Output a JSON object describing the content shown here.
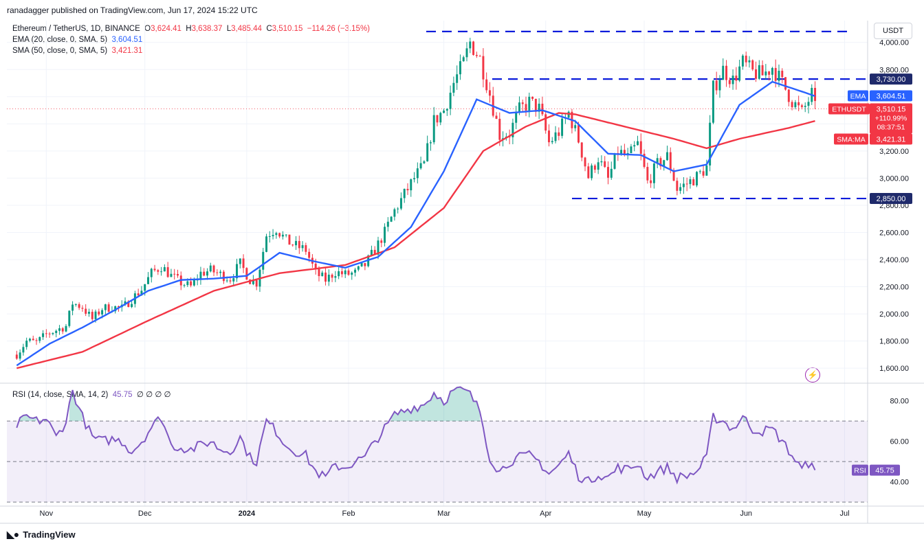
{
  "header": {
    "publisher": "ranadagger published on TradingView.com, Jun 17, 2024 15:22 UTC",
    "symbol": "Ethereum / TetherUS, 1D, BINANCE",
    "open_label": "O",
    "open": "3,624.41",
    "high_label": "H",
    "high": "3,638.37",
    "low_label": "L",
    "low": "3,485.44",
    "close_label": "C",
    "close": "3,510.15",
    "change": "−114.26 (−3.15%)",
    "ema_legend": "EMA (20, close, 0, SMA, 5)",
    "ema_value": "3,604.51",
    "sma_legend": "SMA (50, close, 0, SMA, 5)",
    "sma_value": "3,421.31",
    "rsi_legend": "RSI (14, close, SMA, 14, 2)",
    "rsi_value": "45.75",
    "rsi_extra": "∅ ∅ ∅ ∅",
    "currency": "USDT"
  },
  "brand": {
    "name": "TradingView",
    "logo_icon": "tradingview-logo-icon",
    "flash_icon": "lightning-icon"
  },
  "colors": {
    "up": "#089981",
    "down": "#f23645",
    "ema": "#2962ff",
    "sma": "#f23645",
    "rsi": "#7e57c2",
    "level": "#0a1bdb"
  },
  "chart_data": [
    {
      "type": "candlestick",
      "title": "Ethereum / TetherUS, 1D, BINANCE",
      "x_tick_labels": [
        "Nov",
        "Dec",
        "2024",
        "Feb",
        "Mar",
        "Apr",
        "May",
        "Jun",
        "Jul"
      ],
      "y_ticks": [
        1600,
        1800,
        2000,
        2200,
        2400,
        2600,
        2800,
        3000,
        3200,
        3400,
        3600,
        3800,
        4000
      ],
      "y_tick_labels": [
        "1,600.00",
        "1,800.00",
        "2,000.00",
        "2,200.00",
        "2,400.00",
        "2,600.00",
        "2,800.00",
        "3,000.00",
        "3,200.00",
        "3,400.00",
        "3,600.00",
        "3,800.00",
        "4,000.00"
      ],
      "ylim": [
        1530,
        4120
      ],
      "start_date": "2023-10-23",
      "close_points": [
        [
          0,
          1700
        ],
        [
          3,
          1800
        ],
        [
          6,
          1790
        ],
        [
          9,
          1850
        ],
        [
          12,
          1880
        ],
        [
          15,
          1910
        ],
        [
          17,
          2080
        ],
        [
          20,
          2050
        ],
        [
          23,
          1960
        ],
        [
          26,
          2040
        ],
        [
          29,
          2050
        ],
        [
          32,
          2040
        ],
        [
          35,
          2110
        ],
        [
          38,
          2180
        ],
        [
          41,
          2300
        ],
        [
          44,
          2350
        ],
        [
          47,
          2280
        ],
        [
          50,
          2230
        ],
        [
          53,
          2200
        ],
        [
          56,
          2300
        ],
        [
          59,
          2320
        ],
        [
          62,
          2290
        ],
        [
          65,
          2260
        ],
        [
          68,
          2370
        ],
        [
          71,
          2250
        ],
        [
          73,
          2230
        ],
        [
          76,
          2580
        ],
        [
          79,
          2630
        ],
        [
          82,
          2540
        ],
        [
          85,
          2500
        ],
        [
          88,
          2470
        ],
        [
          91,
          2300
        ],
        [
          94,
          2250
        ],
        [
          97,
          2310
        ],
        [
          100,
          2290
        ],
        [
          103,
          2300
        ],
        [
          106,
          2360
        ],
        [
          109,
          2470
        ],
        [
          112,
          2600
        ],
        [
          115,
          2760
        ],
        [
          118,
          2880
        ],
        [
          121,
          3000
        ],
        [
          124,
          3100
        ],
        [
          127,
          3420
        ],
        [
          130,
          3500
        ],
        [
          133,
          3700
        ],
        [
          136,
          3850
        ],
        [
          138,
          4000
        ],
        [
          141,
          3880
        ],
        [
          144,
          3620
        ],
        [
          147,
          3320
        ],
        [
          150,
          3330
        ],
        [
          153,
          3500
        ],
        [
          156,
          3560
        ],
        [
          159,
          3510
        ],
        [
          162,
          3260
        ],
        [
          165,
          3340
        ],
        [
          168,
          3480
        ],
        [
          171,
          3280
        ],
        [
          174,
          3010
        ],
        [
          177,
          3150
        ],
        [
          180,
          2990
        ],
        [
          183,
          3200
        ],
        [
          186,
          3150
        ],
        [
          189,
          3250
        ],
        [
          192,
          2970
        ],
        [
          195,
          3100
        ],
        [
          198,
          3160
        ],
        [
          201,
          2920
        ],
        [
          204,
          2960
        ],
        [
          207,
          3010
        ],
        [
          210,
          3080
        ],
        [
          212,
          3660
        ],
        [
          215,
          3800
        ],
        [
          218,
          3720
        ],
        [
          221,
          3850
        ],
        [
          224,
          3780
        ],
        [
          227,
          3760
        ],
        [
          230,
          3820
        ],
        [
          233,
          3700
        ],
        [
          236,
          3570
        ],
        [
          239,
          3480
        ],
        [
          242,
          3620
        ],
        [
          243,
          3510
        ]
      ],
      "ema_points": [
        [
          0,
          1620
        ],
        [
          10,
          1780
        ],
        [
          20,
          1900
        ],
        [
          30,
          2030
        ],
        [
          40,
          2170
        ],
        [
          50,
          2250
        ],
        [
          60,
          2260
        ],
        [
          70,
          2280
        ],
        [
          80,
          2450
        ],
        [
          90,
          2390
        ],
        [
          100,
          2340
        ],
        [
          110,
          2420
        ],
        [
          120,
          2640
        ],
        [
          130,
          3050
        ],
        [
          140,
          3580
        ],
        [
          150,
          3480
        ],
        [
          160,
          3500
        ],
        [
          170,
          3420
        ],
        [
          180,
          3180
        ],
        [
          190,
          3170
        ],
        [
          200,
          3050
        ],
        [
          210,
          3100
        ],
        [
          220,
          3540
        ],
        [
          230,
          3710
        ],
        [
          240,
          3630
        ],
        [
          243,
          3604
        ]
      ],
      "sma_points": [
        [
          0,
          1600
        ],
        [
          20,
          1720
        ],
        [
          40,
          1950
        ],
        [
          60,
          2170
        ],
        [
          80,
          2300
        ],
        [
          100,
          2360
        ],
        [
          115,
          2490
        ],
        [
          130,
          2780
        ],
        [
          142,
          3200
        ],
        [
          155,
          3380
        ],
        [
          165,
          3480
        ],
        [
          170,
          3470
        ],
        [
          185,
          3380
        ],
        [
          200,
          3290
        ],
        [
          210,
          3220
        ],
        [
          220,
          3290
        ],
        [
          235,
          3370
        ],
        [
          243,
          3421
        ]
      ],
      "horizontal_levels": [
        {
          "price": 4080,
          "label": ""
        },
        {
          "price": 3730,
          "label": "3,730.00"
        },
        {
          "price": 2850,
          "label": "2,850.00"
        }
      ],
      "price_labels": [
        {
          "name": "EMA",
          "value": "3,604.51",
          "price": 3604.51
        },
        {
          "name": "ETHUSDT",
          "value": "3,510.15",
          "extra1": "+110.99%",
          "extra2": "08:37:51",
          "price": 3510.15
        },
        {
          "name": "SMA:MA",
          "value": "3,421.31",
          "price": 3421.31
        }
      ]
    },
    {
      "type": "line",
      "title": "RSI (14, close, SMA, 14, 2)",
      "y_ticks": [
        40,
        60,
        80
      ],
      "y_tick_labels": [
        "40.00",
        "60.00",
        "80.00"
      ],
      "ylim": [
        28,
        88
      ],
      "bands": [
        30,
        50,
        70
      ],
      "last_value": "45.75",
      "points": [
        [
          0,
          68
        ],
        [
          3,
          72
        ],
        [
          6,
          70
        ],
        [
          9,
          71
        ],
        [
          12,
          62
        ],
        [
          15,
          70
        ],
        [
          17,
          85
        ],
        [
          20,
          72
        ],
        [
          23,
          62
        ],
        [
          26,
          60
        ],
        [
          29,
          61
        ],
        [
          32,
          60
        ],
        [
          35,
          55
        ],
        [
          38,
          60
        ],
        [
          41,
          67
        ],
        [
          44,
          72
        ],
        [
          47,
          58
        ],
        [
          50,
          57
        ],
        [
          53,
          56
        ],
        [
          56,
          58
        ],
        [
          59,
          60
        ],
        [
          62,
          56
        ],
        [
          65,
          55
        ],
        [
          68,
          62
        ],
        [
          71,
          52
        ],
        [
          73,
          50
        ],
        [
          76,
          70
        ],
        [
          79,
          65
        ],
        [
          82,
          58
        ],
        [
          85,
          55
        ],
        [
          88,
          53
        ],
        [
          91,
          45
        ],
        [
          94,
          42
        ],
        [
          97,
          48
        ],
        [
          100,
          47
        ],
        [
          103,
          50
        ],
        [
          106,
          52
        ],
        [
          109,
          60
        ],
        [
          112,
          66
        ],
        [
          115,
          73
        ],
        [
          118,
          75
        ],
        [
          121,
          77
        ],
        [
          124,
          78
        ],
        [
          127,
          84
        ],
        [
          130,
          80
        ],
        [
          133,
          85
        ],
        [
          136,
          85
        ],
        [
          138,
          83
        ],
        [
          141,
          75
        ],
        [
          144,
          52
        ],
        [
          147,
          45
        ],
        [
          150,
          50
        ],
        [
          153,
          52
        ],
        [
          156,
          53
        ],
        [
          159,
          50
        ],
        [
          162,
          44
        ],
        [
          165,
          48
        ],
        [
          168,
          54
        ],
        [
          171,
          43
        ],
        [
          174,
          40
        ],
        [
          177,
          44
        ],
        [
          180,
          42
        ],
        [
          183,
          47
        ],
        [
          186,
          46
        ],
        [
          189,
          49
        ],
        [
          192,
          42
        ],
        [
          195,
          45
        ],
        [
          198,
          47
        ],
        [
          201,
          42
        ],
        [
          204,
          43
        ],
        [
          207,
          45
        ],
        [
          210,
          52
        ],
        [
          212,
          72
        ],
        [
          215,
          70
        ],
        [
          218,
          66
        ],
        [
          221,
          72
        ],
        [
          224,
          66
        ],
        [
          227,
          65
        ],
        [
          230,
          66
        ],
        [
          233,
          60
        ],
        [
          236,
          53
        ],
        [
          239,
          46
        ],
        [
          242,
          51
        ],
        [
          243,
          45.75
        ]
      ]
    }
  ]
}
